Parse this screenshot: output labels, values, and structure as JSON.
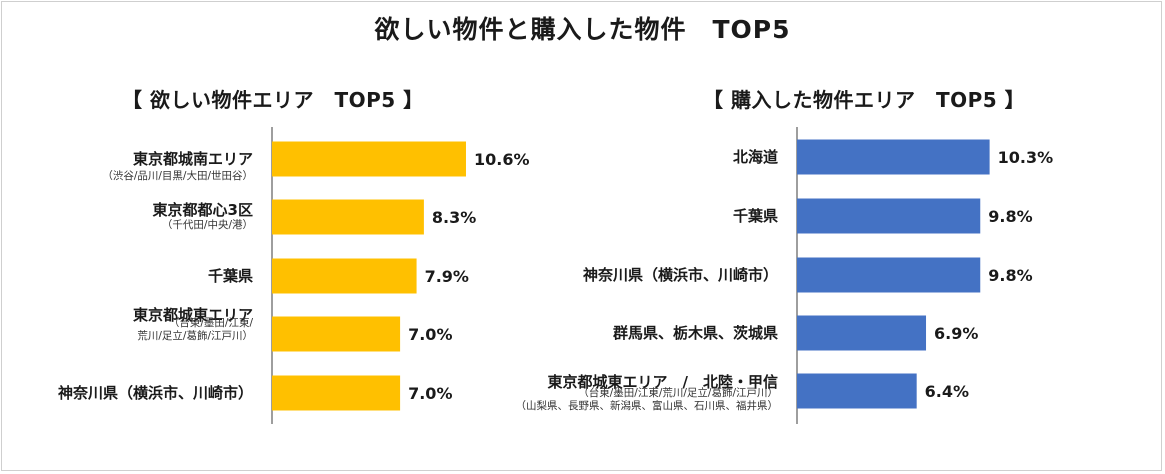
{
  "title": "欲しい物件と購入した物件　TOP5",
  "colors": {
    "left_bar": "#ffc000",
    "right_bar": "#4472c4",
    "axis": "#7f7f7f"
  },
  "chart_data": [
    {
      "type": "bar",
      "orientation": "horizontal",
      "title": "【 欲しい物件エリア　TOP5 】",
      "categories": [
        "東京都城南エリア",
        "東京都都心3区",
        "千葉県",
        "東京都城東エリア",
        "神奈川県（横浜市、川崎市）"
      ],
      "category_notes": [
        [
          "（渋谷/品川/目黒/大田/世田谷）"
        ],
        [
          "（千代田/中央/港）"
        ],
        [],
        [
          "（台東/墨田/江東/",
          "荒川/足立/葛飾/江戸川）"
        ],
        []
      ],
      "values": [
        10.6,
        8.3,
        7.9,
        7.0,
        7.0
      ],
      "value_labels": [
        "10.6%",
        "8.3%",
        "7.9%",
        "7.0%",
        "7.0%"
      ],
      "xlim": [
        0,
        11
      ]
    },
    {
      "type": "bar",
      "orientation": "horizontal",
      "title": "【 購入した物件エリア　TOP5 】",
      "categories": [
        "北海道",
        "千葉県",
        "神奈川県（横浜市、川崎市）",
        "群馬県、栃木県、茨城県",
        "東京都城東エリア　/　北陸・甲信"
      ],
      "category_notes": [
        [],
        [],
        [],
        [],
        [
          "（台東/墨田/江東/荒川/足立/葛飾/江戸川）",
          "（山梨県、長野県、新潟県、富山県、石川県、福井県）"
        ]
      ],
      "values": [
        10.3,
        9.8,
        9.8,
        6.9,
        6.4
      ],
      "value_labels": [
        "10.3%",
        "9.8%",
        "9.8%",
        "6.9%",
        "6.4%"
      ],
      "xlim": [
        0,
        11
      ]
    }
  ]
}
